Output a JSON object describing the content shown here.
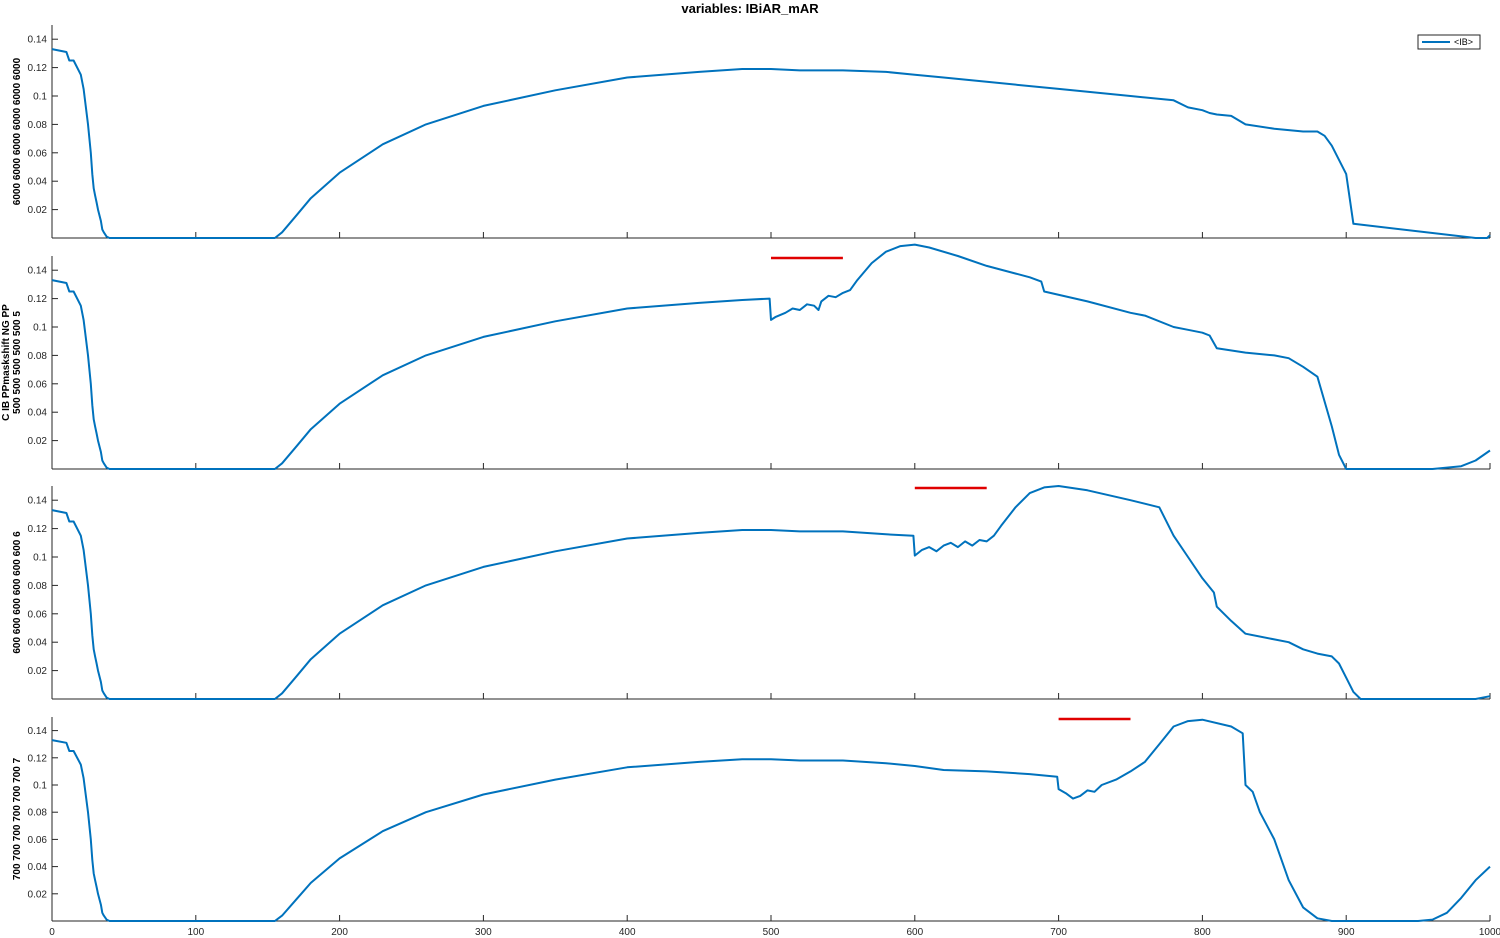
{
  "chart_data": [
    {
      "type": "line",
      "title": "variables: IBiAR_mAR",
      "ylabel": [
        "6000 6000 6000 6000 6000 6000"
      ],
      "xlim": [
        0,
        1000
      ],
      "ylim": [
        0,
        0.15
      ],
      "yticks": [
        0.02,
        0.04,
        0.06,
        0.08,
        0.1,
        0.12,
        0.14
      ],
      "xticks": [
        0,
        100,
        200,
        300,
        400,
        500,
        600,
        700,
        800,
        900,
        1000
      ],
      "show_xtick_labels": false,
      "legend": {
        "entries": [
          "<IB>"
        ],
        "position": "top-right"
      },
      "stim_bar": null,
      "series": [
        {
          "color": "#0072BD",
          "x": [
            0,
            10,
            12,
            15,
            20,
            22,
            25,
            27,
            28,
            29,
            30,
            31,
            32,
            34,
            35,
            36,
            38,
            40,
            150,
            155,
            160,
            170,
            180,
            200,
            230,
            260,
            300,
            350,
            400,
            450,
            480,
            500,
            520,
            550,
            580,
            600,
            620,
            650,
            700,
            750,
            780,
            790,
            800,
            805,
            810,
            820,
            830,
            850,
            860,
            870,
            880,
            885,
            890,
            900,
            905,
            990,
            998,
            1000
          ],
          "y": [
            0.133,
            0.131,
            0.125,
            0.125,
            0.115,
            0.105,
            0.08,
            0.06,
            0.045,
            0.035,
            0.03,
            0.025,
            0.02,
            0.012,
            0.006,
            0.004,
            0.001,
            0,
            0,
            0,
            0.004,
            0.016,
            0.028,
            0.046,
            0.066,
            0.08,
            0.093,
            0.104,
            0.113,
            0.117,
            0.119,
            0.119,
            0.118,
            0.118,
            0.117,
            0.115,
            0.113,
            0.11,
            0.105,
            0.1,
            0.097,
            0.092,
            0.09,
            0.088,
            0.087,
            0.086,
            0.08,
            0.077,
            0.076,
            0.075,
            0.075,
            0.072,
            0.065,
            0.045,
            0.01,
            0,
            0,
            0.002
          ]
        }
      ]
    },
    {
      "type": "line",
      "title": "",
      "ylabel": [
        "C IB PPmaskshift NG PP",
        "500 500 500 500 500 5"
      ],
      "xlim": [
        0,
        1000
      ],
      "ylim": [
        0,
        0.15
      ],
      "yticks": [
        0.02,
        0.04,
        0.06,
        0.08,
        0.1,
        0.12,
        0.14
      ],
      "xticks": [
        0,
        100,
        200,
        300,
        400,
        500,
        600,
        700,
        800,
        900,
        1000
      ],
      "show_xtick_labels": false,
      "legend": null,
      "stim_bar": {
        "x": [
          500,
          550
        ],
        "color": "#e00000"
      },
      "series": [
        {
          "color": "#0072BD",
          "x": [
            0,
            10,
            12,
            15,
            20,
            22,
            25,
            27,
            28,
            29,
            30,
            31,
            32,
            34,
            35,
            36,
            38,
            40,
            150,
            155,
            160,
            170,
            180,
            200,
            230,
            260,
            300,
            350,
            400,
            450,
            480,
            499,
            500,
            503,
            510,
            515,
            520,
            525,
            530,
            533,
            535,
            540,
            545,
            550,
            555,
            560,
            570,
            580,
            590,
            600,
            610,
            630,
            650,
            680,
            688,
            690,
            720,
            750,
            760,
            780,
            790,
            800,
            805,
            810,
            830,
            850,
            860,
            870,
            880,
            890,
            895,
            900,
            960,
            980,
            990,
            1000
          ],
          "y": [
            0.133,
            0.131,
            0.125,
            0.125,
            0.115,
            0.105,
            0.08,
            0.06,
            0.045,
            0.035,
            0.03,
            0.025,
            0.02,
            0.012,
            0.006,
            0.004,
            0.001,
            0,
            0,
            0,
            0.004,
            0.016,
            0.028,
            0.046,
            0.066,
            0.08,
            0.093,
            0.104,
            0.113,
            0.117,
            0.119,
            0.12,
            0.105,
            0.107,
            0.11,
            0.113,
            0.112,
            0.116,
            0.115,
            0.112,
            0.118,
            0.122,
            0.121,
            0.124,
            0.126,
            0.133,
            0.145,
            0.153,
            0.157,
            0.158,
            0.156,
            0.15,
            0.143,
            0.135,
            0.132,
            0.125,
            0.118,
            0.11,
            0.108,
            0.1,
            0.098,
            0.096,
            0.094,
            0.085,
            0.082,
            0.08,
            0.078,
            0.072,
            0.065,
            0.03,
            0.01,
            0,
            0,
            0.002,
            0.006,
            0.013
          ]
        }
      ]
    },
    {
      "type": "line",
      "title": "",
      "ylabel": [
        "600 600 600 600 600 600 6"
      ],
      "xlim": [
        0,
        1000
      ],
      "ylim": [
        0,
        0.15
      ],
      "yticks": [
        0.02,
        0.04,
        0.06,
        0.08,
        0.1,
        0.12,
        0.14
      ],
      "xticks": [
        0,
        100,
        200,
        300,
        400,
        500,
        600,
        700,
        800,
        900,
        1000
      ],
      "show_xtick_labels": false,
      "legend": null,
      "stim_bar": {
        "x": [
          600,
          650
        ],
        "color": "#e00000"
      },
      "series": [
        {
          "color": "#0072BD",
          "x": [
            0,
            10,
            12,
            15,
            20,
            22,
            25,
            27,
            28,
            29,
            30,
            31,
            32,
            34,
            35,
            36,
            38,
            40,
            150,
            155,
            160,
            170,
            180,
            200,
            230,
            260,
            300,
            350,
            400,
            450,
            480,
            500,
            520,
            550,
            580,
            599,
            600,
            605,
            610,
            615,
            620,
            625,
            630,
            635,
            640,
            645,
            650,
            655,
            660,
            670,
            680,
            690,
            700,
            720,
            750,
            770,
            780,
            790,
            800,
            808,
            810,
            820,
            830,
            850,
            860,
            870,
            880,
            890,
            895,
            900,
            905,
            910,
            990,
            1000
          ],
          "y": [
            0.133,
            0.131,
            0.125,
            0.125,
            0.115,
            0.105,
            0.08,
            0.06,
            0.045,
            0.035,
            0.03,
            0.025,
            0.02,
            0.012,
            0.006,
            0.004,
            0.001,
            0,
            0,
            0,
            0.004,
            0.016,
            0.028,
            0.046,
            0.066,
            0.08,
            0.093,
            0.104,
            0.113,
            0.117,
            0.119,
            0.119,
            0.118,
            0.118,
            0.116,
            0.115,
            0.101,
            0.105,
            0.107,
            0.104,
            0.108,
            0.11,
            0.107,
            0.111,
            0.108,
            0.112,
            0.111,
            0.115,
            0.122,
            0.135,
            0.145,
            0.149,
            0.15,
            0.147,
            0.14,
            0.135,
            0.115,
            0.1,
            0.085,
            0.075,
            0.065,
            0.055,
            0.046,
            0.042,
            0.04,
            0.035,
            0.032,
            0.03,
            0.025,
            0.015,
            0.005,
            0,
            0,
            0.002
          ]
        }
      ]
    },
    {
      "type": "line",
      "title": "",
      "ylabel": [
        "700 700 700 700 700 700 7"
      ],
      "xlim": [
        0,
        1000
      ],
      "ylim": [
        0,
        0.15
      ],
      "yticks": [
        0.02,
        0.04,
        0.06,
        0.08,
        0.1,
        0.12,
        0.14
      ],
      "xticks": [
        0,
        100,
        200,
        300,
        400,
        500,
        600,
        700,
        800,
        900,
        1000
      ],
      "xtick_labels": [
        "0",
        "100",
        "200",
        "300",
        "400",
        "500",
        "600",
        "700",
        "800",
        "900",
        "1000"
      ],
      "show_xtick_labels": true,
      "legend": null,
      "stim_bar": {
        "x": [
          700,
          750
        ],
        "color": "#e00000"
      },
      "series": [
        {
          "color": "#0072BD",
          "x": [
            0,
            10,
            12,
            15,
            20,
            22,
            25,
            27,
            28,
            29,
            30,
            31,
            32,
            34,
            35,
            36,
            38,
            40,
            150,
            155,
            160,
            170,
            180,
            200,
            230,
            260,
            300,
            350,
            400,
            450,
            480,
            500,
            520,
            550,
            580,
            600,
            620,
            650,
            680,
            699,
            700,
            705,
            710,
            715,
            720,
            725,
            730,
            740,
            750,
            760,
            770,
            780,
            790,
            800,
            820,
            828,
            830,
            835,
            840,
            850,
            860,
            870,
            880,
            890,
            900,
            950,
            960,
            970,
            980,
            990,
            1000
          ],
          "y": [
            0.133,
            0.131,
            0.125,
            0.125,
            0.115,
            0.105,
            0.08,
            0.06,
            0.045,
            0.035,
            0.03,
            0.025,
            0.02,
            0.012,
            0.006,
            0.004,
            0.001,
            0,
            0,
            0,
            0.004,
            0.016,
            0.028,
            0.046,
            0.066,
            0.08,
            0.093,
            0.104,
            0.113,
            0.117,
            0.119,
            0.119,
            0.118,
            0.118,
            0.116,
            0.114,
            0.111,
            0.11,
            0.108,
            0.106,
            0.097,
            0.094,
            0.09,
            0.092,
            0.096,
            0.095,
            0.1,
            0.104,
            0.11,
            0.117,
            0.13,
            0.143,
            0.147,
            0.148,
            0.143,
            0.138,
            0.1,
            0.095,
            0.08,
            0.06,
            0.03,
            0.01,
            0.002,
            0,
            0,
            0,
            0.001,
            0.006,
            0.017,
            0.03,
            0.04
          ]
        }
      ]
    }
  ]
}
